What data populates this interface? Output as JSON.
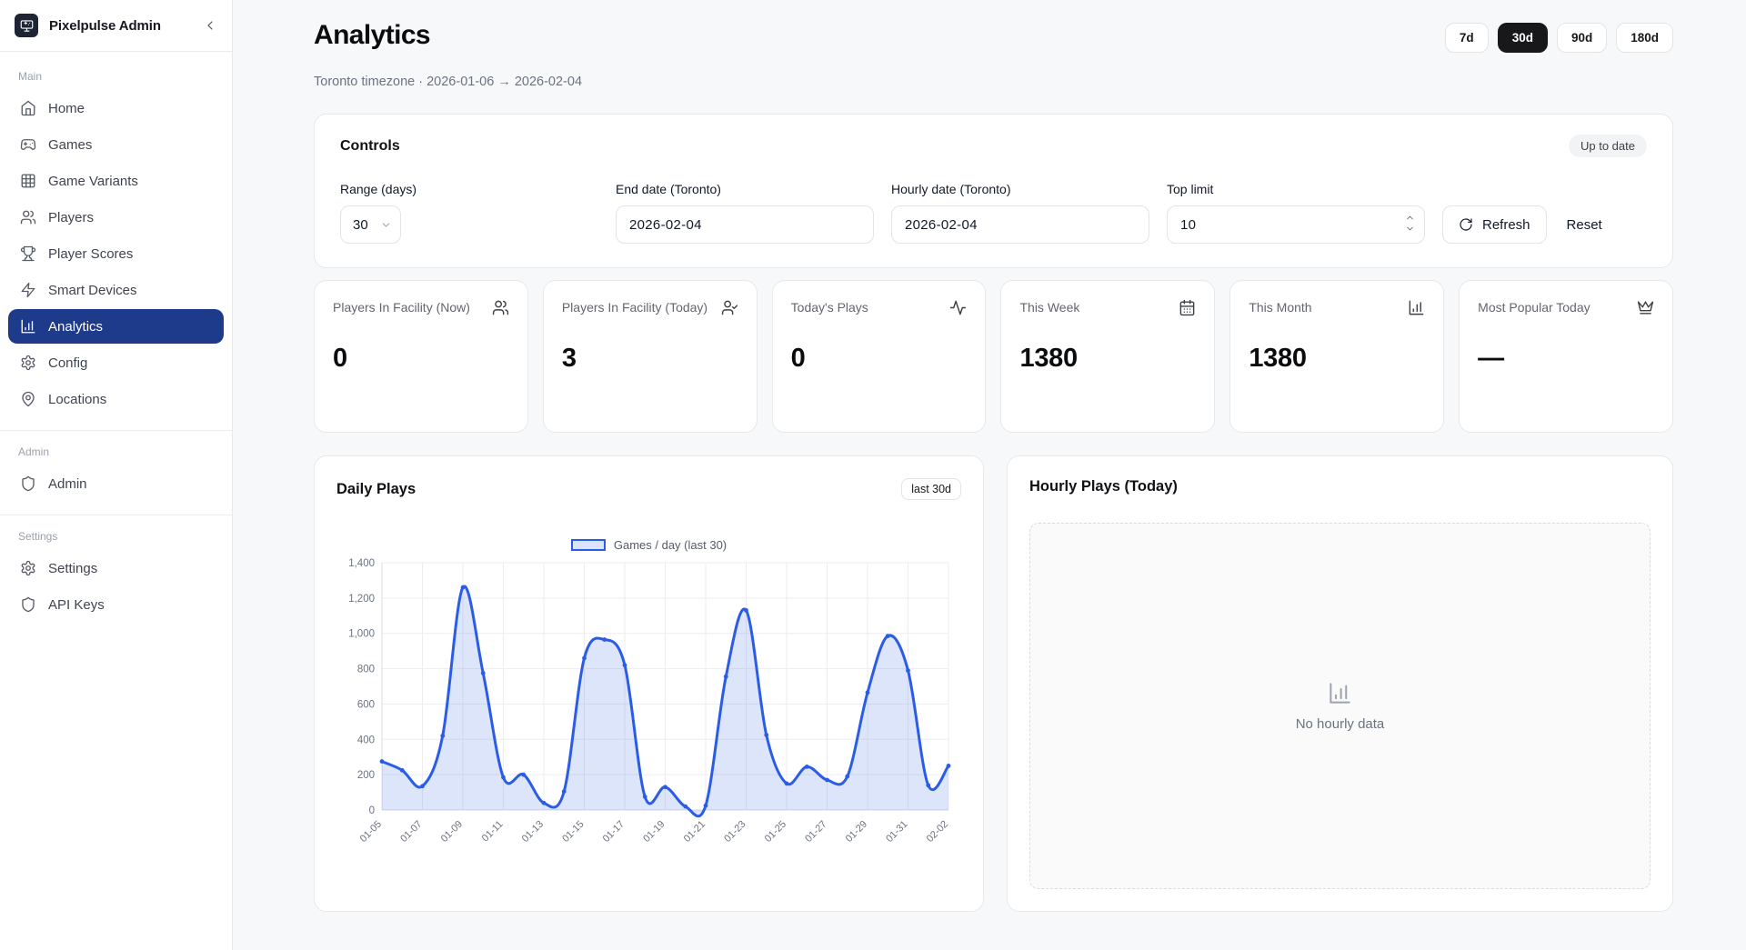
{
  "app": {
    "name": "Pixelpulse Admin"
  },
  "sidebar": {
    "sections": [
      {
        "label": "Main",
        "items": [
          {
            "icon": "home-icon",
            "label": "Home"
          },
          {
            "icon": "gamepad-icon",
            "label": "Games"
          },
          {
            "icon": "grid-icon",
            "label": "Game Variants"
          },
          {
            "icon": "users-icon",
            "label": "Players"
          },
          {
            "icon": "trophy-icon",
            "label": "Player Scores"
          },
          {
            "icon": "zap-icon",
            "label": "Smart Devices"
          },
          {
            "icon": "bar-chart-icon",
            "label": "Analytics"
          },
          {
            "icon": "gear-icon",
            "label": "Config"
          },
          {
            "icon": "map-pin-icon",
            "label": "Locations"
          }
        ]
      },
      {
        "label": "Admin",
        "items": [
          {
            "icon": "shield-icon",
            "label": "Admin"
          }
        ]
      },
      {
        "label": "Settings",
        "items": [
          {
            "icon": "gear-icon",
            "label": "Settings"
          },
          {
            "icon": "shield-icon",
            "label": "API Keys"
          }
        ]
      }
    ],
    "active_item": "Analytics"
  },
  "header": {
    "title": "Analytics",
    "subtitle": "Toronto timezone · 2026-01-06 → 2026-02-04",
    "ranges": [
      "7d",
      "30d",
      "90d",
      "180d"
    ],
    "active_range": "30d"
  },
  "controls": {
    "title": "Controls",
    "status_badge": "Up to date",
    "range": {
      "label": "Range (days)",
      "value": "30"
    },
    "end_date": {
      "label": "End date (Toronto)",
      "value": "2026-02-04"
    },
    "hourly_date": {
      "label": "Hourly date (Toronto)",
      "value": "2026-02-04"
    },
    "top_limit": {
      "label": "Top limit",
      "value": "10"
    },
    "refresh_label": "Refresh",
    "reset_label": "Reset"
  },
  "stats": [
    {
      "icon": "users-icon",
      "label": "Players In Facility (Now)",
      "value": "0"
    },
    {
      "icon": "user-check-icon",
      "label": "Players In Facility (Today)",
      "value": "3"
    },
    {
      "icon": "activity-icon",
      "label": "Today's Plays",
      "value": "0"
    },
    {
      "icon": "calendar-icon",
      "label": "This Week",
      "value": "1380"
    },
    {
      "icon": "bar-chart-icon",
      "label": "This Month",
      "value": "1380"
    },
    {
      "icon": "crown-icon",
      "label": "Most Popular Today",
      "value": "—"
    }
  ],
  "daily": {
    "title": "Daily Plays",
    "badge": "last 30d",
    "legend": "Games / day (last 30)"
  },
  "hourly": {
    "title": "Hourly Plays (Today)",
    "empty_text": "No hourly data"
  },
  "chart_data": {
    "type": "area",
    "title": "Daily Plays",
    "legend": "Games / day (last 30)",
    "x": [
      "01-05",
      "01-06",
      "01-07",
      "01-08",
      "01-09",
      "01-10",
      "01-11",
      "01-12",
      "01-13",
      "01-14",
      "01-15",
      "01-16",
      "01-17",
      "01-18",
      "01-19",
      "01-20",
      "01-21",
      "01-22",
      "01-23",
      "01-24",
      "01-25",
      "01-26",
      "01-27",
      "01-28",
      "01-29",
      "01-30",
      "01-31",
      "02-01",
      "02-02"
    ],
    "values": [
      275,
      225,
      135,
      420,
      1260,
      775,
      185,
      200,
      40,
      105,
      860,
      965,
      820,
      75,
      130,
      20,
      25,
      755,
      1130,
      425,
      150,
      245,
      170,
      190,
      665,
      985,
      790,
      140,
      250
    ],
    "ylim": [
      0,
      1400
    ],
    "ytick_step": 200,
    "xtick_every": 2,
    "line_color": "#2b5ce6",
    "fill_color": "rgba(43,92,230,0.16)",
    "grid": true,
    "legend_position": "top"
  }
}
